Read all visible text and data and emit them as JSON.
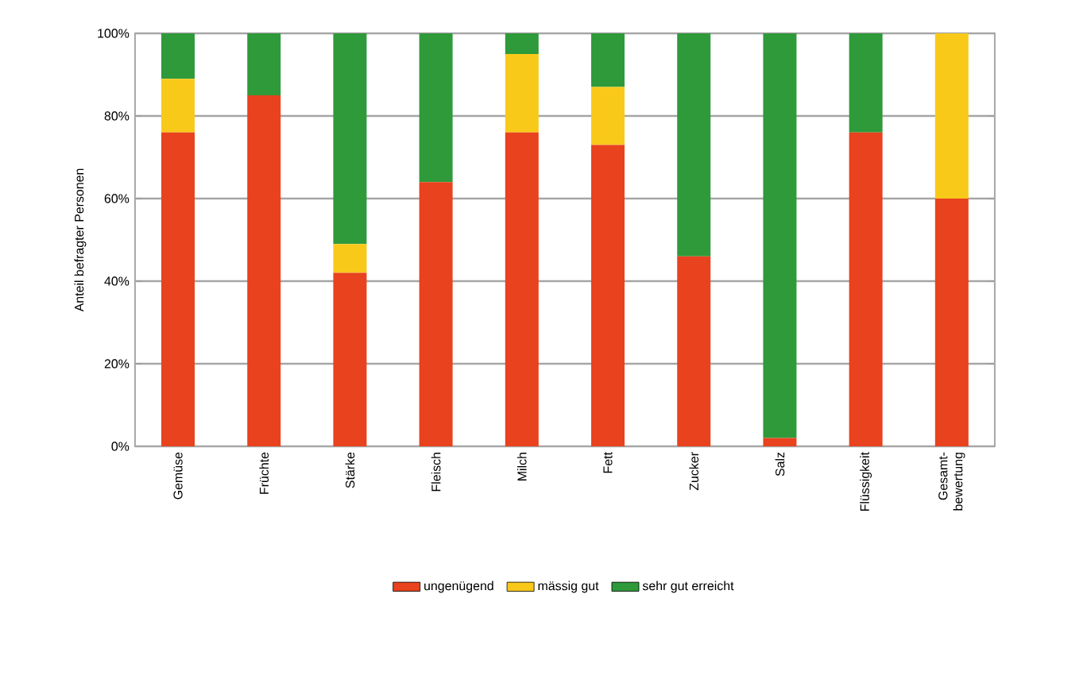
{
  "chart_data": {
    "type": "bar",
    "stacked": true,
    "ylabel": "Anteil befragter Personen",
    "categories": [
      "Gemüse",
      "Früchte",
      "Stärke",
      "Fleisch",
      "Milch",
      "Fett",
      "Zucker",
      "Salz",
      "Flüssigkeit",
      "Gesamt- bewertung"
    ],
    "series": [
      {
        "name": "ungenügend",
        "color": "#e8421e",
        "values": [
          76,
          85,
          42,
          64,
          76,
          73,
          46,
          2,
          76,
          60
        ]
      },
      {
        "name": "mässig gut",
        "color": "#f9c91a",
        "values": [
          13,
          0,
          7,
          0,
          19,
          14,
          0,
          0,
          0,
          40
        ]
      },
      {
        "name": "sehr gut erreicht",
        "color": "#2e9a3a",
        "values": [
          11,
          15,
          51,
          36,
          5,
          13,
          54,
          98,
          24,
          0
        ]
      }
    ],
    "ylim": [
      0,
      100
    ],
    "yticks": [
      {
        "value": 0,
        "label": "0%"
      },
      {
        "value": 20,
        "label": "20%"
      },
      {
        "value": 40,
        "label": "40%"
      },
      {
        "value": 60,
        "label": "60%"
      },
      {
        "value": 80,
        "label": "80%"
      },
      {
        "value": 100,
        "label": "100%"
      }
    ],
    "grid": "y",
    "legend": "bottom"
  }
}
